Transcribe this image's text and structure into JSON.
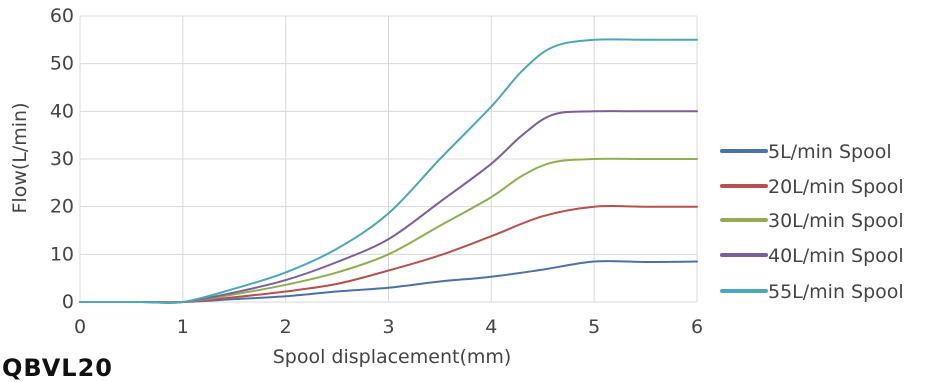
{
  "caption": "QBVL20",
  "chart_data": {
    "type": "line",
    "xlabel": "Spool displacement(mm)",
    "ylabel": "Flow(L/min)",
    "xlim": [
      0,
      6
    ],
    "ylim": [
      0,
      60
    ],
    "xticks": [
      "0",
      "1",
      "2",
      "3",
      "4",
      "5",
      "6"
    ],
    "yticks": [
      "0",
      "10",
      "20",
      "30",
      "40",
      "50",
      "60"
    ],
    "grid": true,
    "legend_position": "right",
    "series": [
      {
        "name": "5L/min Spool",
        "color": "#4a72a8",
        "x": [
          0,
          0.6,
          1,
          1.5,
          2,
          2.5,
          3,
          3.5,
          4,
          4.5,
          5,
          5.5,
          6
        ],
        "y": [
          0,
          0,
          0,
          0.6,
          1.2,
          2.2,
          3.0,
          4.3,
          5.3,
          6.8,
          8.5,
          8.4,
          8.5
        ]
      },
      {
        "name": "20L/min Spool",
        "color": "#b8504d",
        "x": [
          0,
          0.6,
          1,
          1.5,
          2,
          2.5,
          3,
          3.5,
          4,
          4.5,
          5,
          5.5,
          6
        ],
        "y": [
          0,
          0,
          0,
          1.0,
          2.2,
          3.8,
          6.6,
          9.8,
          13.8,
          18.0,
          20.0,
          20.0,
          20.0
        ]
      },
      {
        "name": "30L/min Spool",
        "color": "#8fae50",
        "x": [
          0,
          0.6,
          1,
          1.5,
          2,
          2.5,
          3,
          3.5,
          4,
          4.3,
          4.6,
          5,
          5.5,
          6
        ],
        "y": [
          0,
          0,
          0,
          1.6,
          3.6,
          6.2,
          10.0,
          16.0,
          22.0,
          26.5,
          29.3,
          30.0,
          30.0,
          30.0
        ]
      },
      {
        "name": "40L/min Spool",
        "color": "#7b5e9e",
        "x": [
          0,
          0.6,
          1,
          1.5,
          2,
          2.5,
          3,
          3.5,
          4,
          4.3,
          4.6,
          5,
          5.5,
          6
        ],
        "y": [
          0,
          0,
          0,
          2.0,
          4.6,
          8.4,
          13.2,
          21.0,
          29.0,
          35.0,
          39.3,
          40.0,
          40.0,
          40.0
        ]
      },
      {
        "name": "55L/min Spool",
        "color": "#4aa8ba",
        "x": [
          0,
          0.6,
          1,
          1.5,
          2,
          2.5,
          3,
          3.5,
          4,
          4.3,
          4.6,
          5,
          5.5,
          6
        ],
        "y": [
          0,
          0,
          0,
          2.8,
          6.2,
          11.2,
          18.6,
          30.0,
          41.0,
          48.5,
          53.5,
          55.0,
          55.0,
          55.0
        ]
      }
    ]
  }
}
